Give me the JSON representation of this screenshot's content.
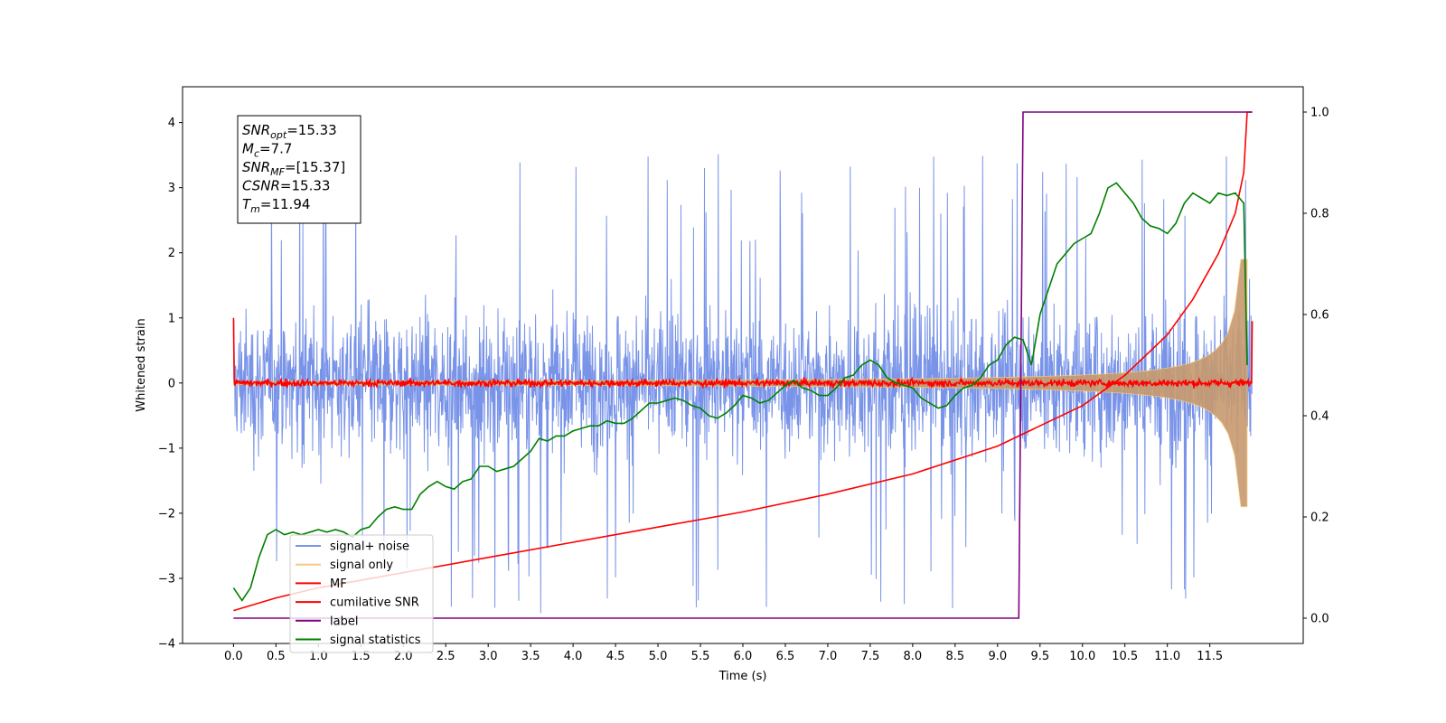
{
  "chart_data": {
    "type": "line",
    "xlabel": "Time (s)",
    "ylabel": "Whitened strain",
    "xlim": [
      -0.6,
      12.6
    ],
    "ylim": [
      -4,
      4.55
    ],
    "ylim_right": [
      -0.05,
      1.05
    ],
    "xticks": [
      "0.0",
      "0.5",
      "1.0",
      "1.5",
      "2.0",
      "2.5",
      "3.0",
      "3.5",
      "4.0",
      "4.5",
      "5.0",
      "5.5",
      "6.0",
      "6.5",
      "7.0",
      "7.5",
      "8.0",
      "8.5",
      "9.0",
      "9.5",
      "10.0",
      "10.5",
      "11.0",
      "11.5"
    ],
    "yticks": [
      "−4",
      "−3",
      "−2",
      "−1",
      "0",
      "1",
      "2",
      "3",
      "4"
    ],
    "yticks_right": [
      "0.0",
      "0.2",
      "0.4",
      "0.6",
      "0.8",
      "1.0"
    ],
    "grid": false,
    "legend_position": "lower-left",
    "annotation": {
      "lines": [
        {
          "base": "SNR",
          "sub": "opt",
          "rest": "=15.33"
        },
        {
          "base": "M",
          "sub": "c",
          "rest": "=7.7"
        },
        {
          "base": "SNR",
          "sub": "MF",
          "rest": "=[15.37]"
        },
        {
          "base": "CSNR",
          "sub": "",
          "rest": "=15.33"
        },
        {
          "base": "T",
          "sub": "m",
          "rest": "=11.94"
        }
      ]
    },
    "series": [
      {
        "name": "signal+ noise",
        "color": "#7893e8",
        "axis": "left",
        "style": "noise-band",
        "amplitude": 2.6,
        "t_start": 0.0,
        "t_end": 12.0
      },
      {
        "name": "signal only",
        "color": "#f5c97a",
        "axis": "left",
        "style": "chirp-envelope",
        "amplitude_start": 0.02,
        "amplitude_end": 1.9,
        "t_start": 0.0,
        "t_end": 11.94
      },
      {
        "name": "MF",
        "color": "#ff0000",
        "axis": "left",
        "style": "small-noise",
        "amplitude": 0.1,
        "t_start": 0.0,
        "t_end": 12.0
      },
      {
        "name": "cumilative SNR",
        "color": "#ff0000",
        "axis": "right",
        "x": [
          0.0,
          0.5,
          1.0,
          2.0,
          3.0,
          4.0,
          5.0,
          6.0,
          7.0,
          8.0,
          9.0,
          9.5,
          10.0,
          10.5,
          11.0,
          11.3,
          11.6,
          11.8,
          11.9,
          11.94,
          12.0
        ],
        "y": [
          0.015,
          0.04,
          0.06,
          0.09,
          0.12,
          0.15,
          0.18,
          0.21,
          0.245,
          0.285,
          0.34,
          0.38,
          0.42,
          0.48,
          0.56,
          0.63,
          0.72,
          0.8,
          0.88,
          1.0,
          1.0
        ]
      },
      {
        "name": "label",
        "color": "#800080",
        "axis": "right",
        "x": [
          0.0,
          9.25,
          9.3,
          12.0
        ],
        "y": [
          0.0,
          0.0,
          1.0,
          1.0
        ]
      },
      {
        "name": "signal statistics",
        "color": "#008000",
        "axis": "right",
        "x": [
          0.0,
          0.1,
          0.2,
          0.3,
          0.4,
          0.5,
          0.6,
          0.7,
          0.8,
          0.9,
          1.0,
          1.1,
          1.2,
          1.3,
          1.4,
          1.5,
          1.6,
          1.7,
          1.8,
          1.9,
          2.0,
          2.1,
          2.2,
          2.3,
          2.4,
          2.5,
          2.6,
          2.7,
          2.8,
          2.9,
          3.0,
          3.1,
          3.2,
          3.3,
          3.4,
          3.5,
          3.6,
          3.7,
          3.8,
          3.9,
          4.0,
          4.1,
          4.2,
          4.3,
          4.4,
          4.5,
          4.6,
          4.7,
          4.8,
          4.9,
          5.0,
          5.1,
          5.2,
          5.3,
          5.4,
          5.5,
          5.6,
          5.7,
          5.8,
          5.9,
          6.0,
          6.1,
          6.2,
          6.3,
          6.4,
          6.5,
          6.6,
          6.7,
          6.8,
          6.9,
          7.0,
          7.1,
          7.2,
          7.3,
          7.4,
          7.5,
          7.6,
          7.7,
          7.8,
          7.9,
          8.0,
          8.1,
          8.2,
          8.3,
          8.4,
          8.5,
          8.6,
          8.7,
          8.8,
          8.9,
          9.0,
          9.1,
          9.2,
          9.3,
          9.4,
          9.5,
          9.6,
          9.7,
          9.8,
          9.9,
          10.0,
          10.1,
          10.2,
          10.3,
          10.4,
          10.5,
          10.6,
          10.7,
          10.8,
          10.9,
          11.0,
          11.1,
          11.2,
          11.3,
          11.4,
          11.5,
          11.6,
          11.7,
          11.8,
          11.9,
          11.94
        ],
        "y": [
          0.06,
          0.035,
          0.06,
          0.12,
          0.165,
          0.175,
          0.165,
          0.17,
          0.165,
          0.17,
          0.175,
          0.17,
          0.175,
          0.17,
          0.16,
          0.175,
          0.18,
          0.2,
          0.215,
          0.22,
          0.215,
          0.215,
          0.245,
          0.26,
          0.27,
          0.26,
          0.255,
          0.27,
          0.275,
          0.3,
          0.3,
          0.29,
          0.295,
          0.3,
          0.315,
          0.33,
          0.355,
          0.35,
          0.36,
          0.36,
          0.37,
          0.375,
          0.38,
          0.38,
          0.39,
          0.385,
          0.385,
          0.395,
          0.41,
          0.425,
          0.425,
          0.43,
          0.435,
          0.43,
          0.42,
          0.415,
          0.4,
          0.395,
          0.405,
          0.42,
          0.44,
          0.435,
          0.425,
          0.43,
          0.445,
          0.46,
          0.47,
          0.455,
          0.45,
          0.44,
          0.44,
          0.455,
          0.475,
          0.48,
          0.5,
          0.51,
          0.5,
          0.475,
          0.465,
          0.46,
          0.455,
          0.435,
          0.425,
          0.415,
          0.42,
          0.44,
          0.455,
          0.46,
          0.475,
          0.5,
          0.51,
          0.54,
          0.555,
          0.55,
          0.5,
          0.6,
          0.65,
          0.7,
          0.72,
          0.74,
          0.75,
          0.76,
          0.8,
          0.85,
          0.86,
          0.84,
          0.82,
          0.79,
          0.775,
          0.77,
          0.76,
          0.78,
          0.82,
          0.84,
          0.83,
          0.82,
          0.84,
          0.835,
          0.84,
          0.82,
          0.5
        ]
      }
    ]
  }
}
